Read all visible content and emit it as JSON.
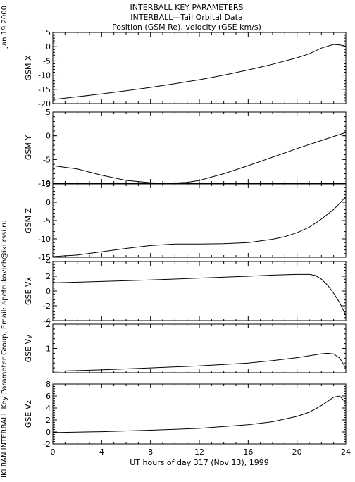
{
  "header": {
    "title": "INTERBALL KEY PARAMETERS",
    "subtitle": "INTERBALL—Tail Orbital Data",
    "subtitle2": "Position (GSM Re), velocity (GSE km/s)"
  },
  "side": {
    "date": "Jan 19 2000",
    "credit": "IKI RAN INTERBALL Key Parameter Group, Email: apetrukovich@iki.rssi.ru"
  },
  "chart_data": {
    "type": "line",
    "xlabel": "UT hours of day 317 (Nov 13), 1999",
    "xlim": [
      0,
      24
    ],
    "x_ticks": [
      0,
      4,
      8,
      12,
      16,
      20,
      24
    ],
    "panels": [
      {
        "name": "GSM X",
        "ylim": [
          -20,
          5
        ],
        "y_ticks": [
          5,
          0,
          -5,
          -10,
          -15,
          -20
        ],
        "points": [
          [
            0,
            -18.6
          ],
          [
            2,
            -17.6
          ],
          [
            4,
            -16.6
          ],
          [
            6,
            -15.5
          ],
          [
            8,
            -14.3
          ],
          [
            10,
            -13.0
          ],
          [
            12,
            -11.6
          ],
          [
            14,
            -10.0
          ],
          [
            16,
            -8.2
          ],
          [
            18,
            -6.2
          ],
          [
            20,
            -3.9
          ],
          [
            21,
            -2.5
          ],
          [
            22,
            -0.5
          ],
          [
            23,
            0.8
          ],
          [
            23.5,
            0.6
          ],
          [
            24,
            0.2
          ]
        ]
      },
      {
        "name": "GSM Y",
        "ylim": [
          -10,
          5
        ],
        "y_ticks": [
          5,
          0,
          -5,
          -10
        ],
        "points": [
          [
            0,
            -6.3
          ],
          [
            2,
            -7.0
          ],
          [
            4,
            -8.3
          ],
          [
            6,
            -9.4
          ],
          [
            8,
            -9.9
          ],
          [
            9.5,
            -10.0
          ],
          [
            11,
            -9.8
          ],
          [
            12,
            -9.4
          ],
          [
            14,
            -8.0
          ],
          [
            16,
            -6.3
          ],
          [
            18,
            -4.5
          ],
          [
            20,
            -2.7
          ],
          [
            22,
            -1.0
          ],
          [
            24,
            0.7
          ]
        ]
      },
      {
        "name": "GSM Z",
        "ylim": [
          -15,
          5
        ],
        "y_ticks": [
          5,
          0,
          -5,
          -10,
          -15
        ],
        "points": [
          [
            0,
            -14.8
          ],
          [
            2,
            -14.4
          ],
          [
            4,
            -13.5
          ],
          [
            6,
            -12.6
          ],
          [
            8,
            -11.8
          ],
          [
            10,
            -11.4
          ],
          [
            12,
            -11.4
          ],
          [
            14,
            -11.3
          ],
          [
            16,
            -11.0
          ],
          [
            18,
            -10.1
          ],
          [
            19,
            -9.4
          ],
          [
            20,
            -8.3
          ],
          [
            21,
            -6.8
          ],
          [
            22,
            -4.6
          ],
          [
            23,
            -2.0
          ],
          [
            24,
            1.5
          ]
        ]
      },
      {
        "name": "GSE Vx",
        "ylim": [
          -4,
          4
        ],
        "y_ticks": [
          4,
          2,
          0,
          -2,
          -4
        ],
        "points": [
          [
            0,
            1.1
          ],
          [
            4,
            1.3
          ],
          [
            8,
            1.5
          ],
          [
            12,
            1.75
          ],
          [
            16,
            2.0
          ],
          [
            18,
            2.15
          ],
          [
            20,
            2.25
          ],
          [
            21,
            2.25
          ],
          [
            21.5,
            2.1
          ],
          [
            22,
            1.6
          ],
          [
            22.5,
            0.8
          ],
          [
            23,
            -0.3
          ],
          [
            23.5,
            -1.6
          ],
          [
            24,
            -3.3
          ]
        ]
      },
      {
        "name": "GSE Vy",
        "ylim": [
          0,
          2
        ],
        "y_ticks": [
          2,
          1
        ],
        "points": [
          [
            0,
            0.06
          ],
          [
            4,
            0.12
          ],
          [
            8,
            0.2
          ],
          [
            12,
            0.28
          ],
          [
            16,
            0.4
          ],
          [
            18,
            0.5
          ],
          [
            20,
            0.62
          ],
          [
            21,
            0.7
          ],
          [
            22,
            0.78
          ],
          [
            22.5,
            0.8
          ],
          [
            23,
            0.77
          ],
          [
            23.5,
            0.6
          ],
          [
            24,
            0.2
          ]
        ]
      },
      {
        "name": "GSE Vz",
        "ylim": [
          -2,
          8
        ],
        "y_ticks": [
          8,
          6,
          4,
          2,
          0,
          -2
        ],
        "points": [
          [
            0,
            -0.1
          ],
          [
            4,
            0.05
          ],
          [
            8,
            0.3
          ],
          [
            12,
            0.6
          ],
          [
            16,
            1.2
          ],
          [
            18,
            1.7
          ],
          [
            20,
            2.6
          ],
          [
            21,
            3.3
          ],
          [
            22,
            4.4
          ],
          [
            23,
            5.8
          ],
          [
            23.5,
            6.0
          ],
          [
            24,
            4.9
          ]
        ]
      }
    ]
  }
}
